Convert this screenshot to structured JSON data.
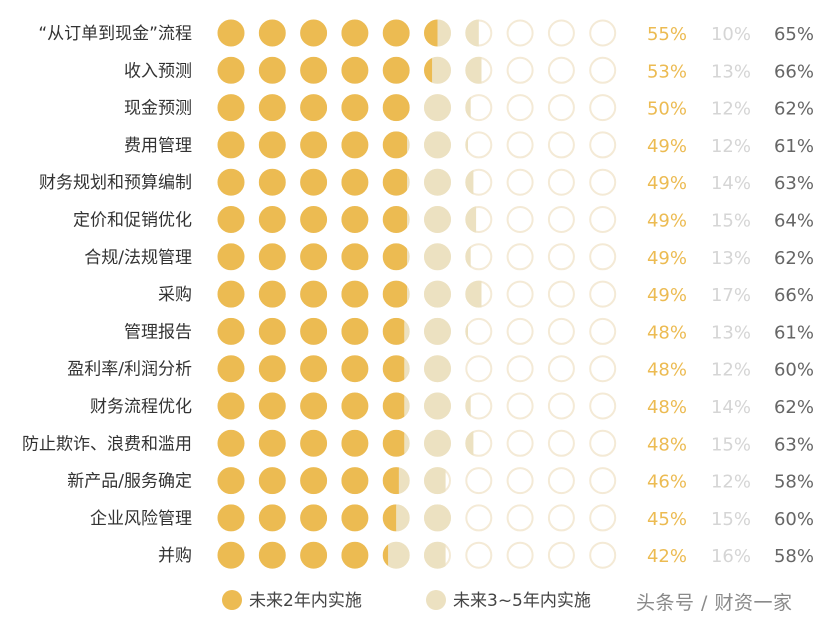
{
  "colors": {
    "dark": "#ECBB52",
    "light": "#ECE1C1",
    "empty_stroke": "#F4EAD6",
    "pct_dark": "#ECBB52",
    "pct_light": "#D5D5D5",
    "pct_total": "#666666"
  },
  "chart_data": {
    "type": "table",
    "title": "",
    "categories": [
      "“从订单到现金”流程",
      "收入预测",
      "现金预测",
      "费用管理",
      "财务规划和预算编制",
      "定价和促销优化",
      "合规/法规管理",
      "采购",
      "管理报告",
      "盈利率/利润分析",
      "财务流程优化",
      "防止欺诈、浪费和滥用",
      "新产品/服务确定",
      "企业风险管理",
      "并购"
    ],
    "series": [
      {
        "name": "未来2年内实施",
        "values": [
          "55%",
          "53%",
          "50%",
          "49%",
          "49%",
          "49%",
          "49%",
          "49%",
          "48%",
          "48%",
          "48%",
          "48%",
          "46%",
          "45%",
          "42%"
        ]
      },
      {
        "name": "未来3~5年内实施",
        "values": [
          "10%",
          "13%",
          "12%",
          "12%",
          "14%",
          "15%",
          "13%",
          "17%",
          "13%",
          "12%",
          "14%",
          "15%",
          "12%",
          "15%",
          "16%"
        ]
      }
    ],
    "totals": [
      "65%",
      "66%",
      "62%",
      "61%",
      "63%",
      "64%",
      "62%",
      "66%",
      "61%",
      "60%",
      "62%",
      "63%",
      "58%",
      "60%",
      "58%"
    ],
    "circles_per_row": 10,
    "percent_per_circle": 10,
    "legend": {
      "position": "bottom",
      "items": [
        {
          "label": "未来2年内实施",
          "color": "#ECBB52"
        },
        {
          "label": "未来3~5年内实施",
          "color": "#ECE1C1"
        }
      ]
    }
  },
  "watermark": "头条号 / 财资一家"
}
